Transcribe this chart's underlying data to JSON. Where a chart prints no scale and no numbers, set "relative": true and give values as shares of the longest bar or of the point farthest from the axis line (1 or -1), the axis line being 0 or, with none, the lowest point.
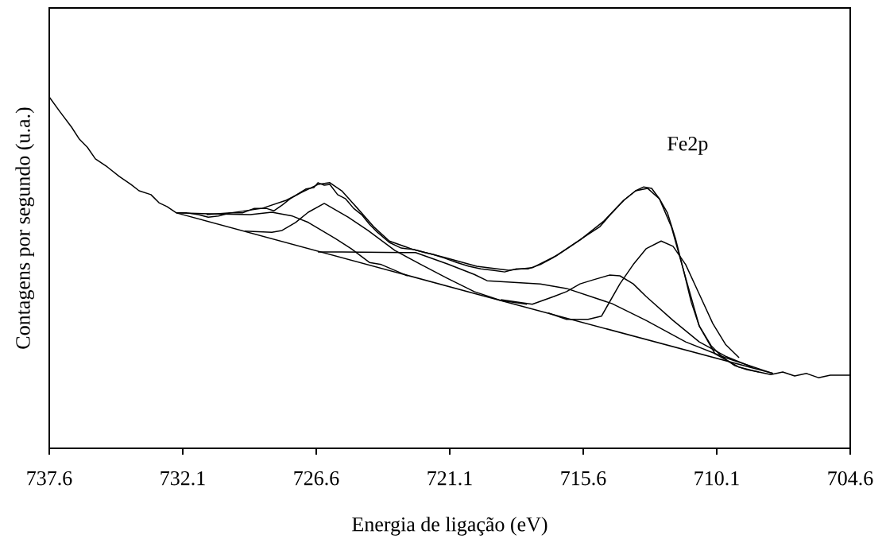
{
  "chart_data": {
    "type": "line",
    "relative": true,
    "xlabel": "Energia de ligação (eV)",
    "ylabel": "Contagens por segundo (u.a.)",
    "annotations": [
      "Fe2p"
    ],
    "xlim": [
      737.6,
      704.6
    ],
    "xticks": [
      737.6,
      732.1,
      726.6,
      721.1,
      715.6,
      710.1,
      704.6
    ],
    "series": [
      {
        "color": "#000000",
        "x": [
          737.6,
          737.17,
          736.68,
          736.36,
          736.03,
          735.7,
          735.21,
          734.72,
          734.23,
          733.9,
          733.41,
          733.08,
          732.75,
          732.36,
          731.94,
          731.45,
          731.05,
          730.63,
          730.14,
          729.64,
          729.15,
          728.66,
          728.34,
          728.01,
          727.68,
          727.35,
          727.03,
          726.7,
          726.53,
          726.27,
          726.04,
          725.72,
          725.39,
          725.06,
          724.73,
          724.41,
          724.08,
          723.59,
          723.1,
          722.61,
          722.12,
          721.79,
          721.3,
          720.81,
          720.31,
          719.82,
          719.33,
          718.84,
          718.35,
          717.86,
          717.37,
          716.88,
          716.39,
          715.89,
          715.4,
          714.91,
          714.42,
          713.93,
          713.44,
          713.11,
          712.78,
          712.46,
          712.13,
          711.8,
          711.47,
          711.15,
          710.82,
          710.33,
          709.84,
          709.35,
          708.86,
          708.37,
          707.87,
          707.38,
          706.89,
          706.4,
          705.91,
          705.42,
          704.93,
          704.6
        ],
        "values": [
          1.0,
          0.959,
          0.914,
          0.88,
          0.857,
          0.824,
          0.801,
          0.774,
          0.751,
          0.733,
          0.722,
          0.699,
          0.688,
          0.67,
          0.67,
          0.665,
          0.658,
          0.661,
          0.67,
          0.67,
          0.683,
          0.683,
          0.676,
          0.692,
          0.71,
          0.724,
          0.738,
          0.742,
          0.756,
          0.749,
          0.751,
          0.722,
          0.71,
          0.683,
          0.665,
          0.638,
          0.615,
          0.586,
          0.57,
          0.566,
          0.557,
          0.552,
          0.541,
          0.529,
          0.518,
          0.511,
          0.507,
          0.502,
          0.511,
          0.511,
          0.523,
          0.541,
          0.563,
          0.586,
          0.609,
          0.631,
          0.67,
          0.706,
          0.733,
          0.744,
          0.74,
          0.71,
          0.67,
          0.597,
          0.507,
          0.416,
          0.348,
          0.292,
          0.258,
          0.235,
          0.224,
          0.217,
          0.21,
          0.217,
          0.206,
          0.213,
          0.201,
          0.208,
          0.208,
          0.208
        ]
      },
      {
        "color": "#000000",
        "x": [
          731.12,
          730.14,
          728.83,
          727.84,
          727.19,
          726.53,
          726.04,
          725.55,
          724.9,
          724.24,
          723.59,
          722.61,
          721.3,
          719.99,
          718.68,
          717.7,
          716.71,
          715.73,
          714.75,
          713.93,
          713.44,
          712.95,
          712.46,
          711.97,
          711.47,
          710.82,
          710.17,
          709.18,
          708.37
        ],
        "values": [
          0.665,
          0.67,
          0.683,
          0.706,
          0.729,
          0.751,
          0.756,
          0.733,
          0.683,
          0.631,
          0.59,
          0.566,
          0.543,
          0.518,
          0.507,
          0.514,
          0.548,
          0.593,
          0.647,
          0.706,
          0.733,
          0.74,
          0.71,
          0.631,
          0.507,
          0.348,
          0.269,
          0.231,
          0.217
        ]
      },
      {
        "color": "#000000",
        "x": [
          732.36,
          719.99,
          707.78
        ],
        "values": [
          0.67,
          0.439,
          0.213
        ]
      },
      {
        "color": "#000000",
        "x": [
          732.36,
          729.32,
          728.43,
          727.58,
          726.93,
          725.81,
          725.16,
          724.41,
          723.92,
          722.84
        ],
        "values": [
          0.67,
          0.665,
          0.672,
          0.661,
          0.643,
          0.597,
          0.568,
          0.529,
          0.523,
          0.491
        ]
      },
      {
        "color": "#000000",
        "x": [
          729.55,
          728.43,
          728.01,
          727.45,
          726.93,
          726.27,
          725.29,
          724.47,
          723.36,
          722.28,
          721.2,
          720.09,
          719.0,
          717.92
        ],
        "values": [
          0.618,
          0.615,
          0.62,
          0.643,
          0.672,
          0.697,
          0.658,
          0.62,
          0.563,
          0.523,
          0.484,
          0.446,
          0.421,
          0.41
        ]
      },
      {
        "color": "#000000",
        "x": [
          726.53,
          725.55,
          722.51,
          721.2,
          720.09,
          719.56,
          717.37,
          716.29,
          714.42,
          713.01,
          711.38,
          709.74,
          707.78
        ],
        "values": [
          0.559,
          0.559,
          0.557,
          0.525,
          0.495,
          0.477,
          0.468,
          0.455,
          0.412,
          0.364,
          0.303,
          0.258,
          0.213
        ]
      },
      {
        "color": "#000000",
        "x": [
          719.0,
          717.7,
          716.81,
          716.29,
          715.73,
          715.17,
          714.52,
          714.09,
          713.54,
          713.01,
          711.9,
          710.82,
          709.74,
          708.63
        ],
        "values": [
          0.423,
          0.41,
          0.432,
          0.446,
          0.468,
          0.48,
          0.493,
          0.491,
          0.468,
          0.432,
          0.364,
          0.303,
          0.262,
          0.231
        ]
      },
      {
        "color": "#000000",
        "x": [
          717.04,
          716.29,
          715.4,
          714.85,
          714.09,
          713.54,
          713.01,
          712.39,
          711.9,
          711.38,
          710.82,
          710.26,
          709.74,
          709.18
        ],
        "values": [
          0.385,
          0.367,
          0.367,
          0.376,
          0.468,
          0.523,
          0.568,
          0.59,
          0.575,
          0.523,
          0.439,
          0.355,
          0.296,
          0.258
        ]
      }
    ]
  }
}
